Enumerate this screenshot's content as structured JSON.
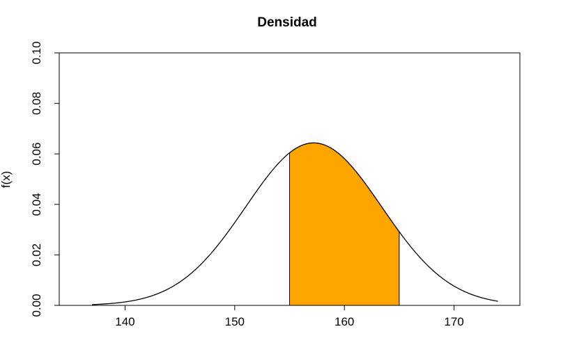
{
  "chart_data": {
    "type": "area",
    "title": "Densidad",
    "xlabel": "",
    "ylabel": "f(x)",
    "xlim": [
      134,
      176
    ],
    "ylim": [
      0,
      0.1
    ],
    "x_ticks": [
      140,
      150,
      160,
      170
    ],
    "x_tick_labels": [
      "140",
      "150",
      "160",
      "170"
    ],
    "y_ticks": [
      0,
      0.02,
      0.04,
      0.06,
      0.08,
      0.1
    ],
    "y_tick_labels": [
      "0.00",
      "0.02",
      "0.04",
      "0.06",
      "0.08",
      "0.10"
    ],
    "grid": false,
    "curve": {
      "distribution": "normal",
      "mean": 157.2,
      "sd": 6.2,
      "x_range": [
        137,
        174
      ]
    },
    "shaded_region": {
      "x_from": 155,
      "x_to": 165
    },
    "colors": {
      "curve": "#000000",
      "fill": "#FFA500",
      "axis": "#000000"
    }
  }
}
